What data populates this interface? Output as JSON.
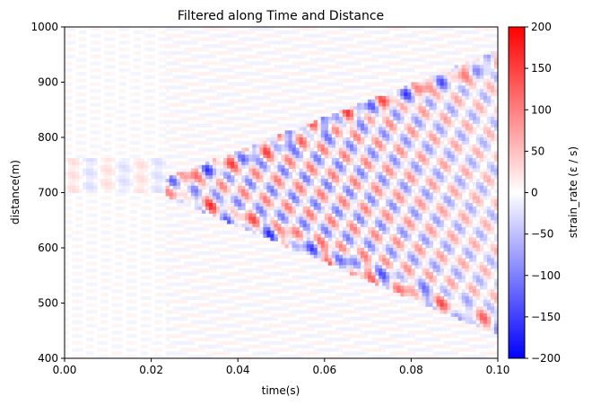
{
  "chart_data": {
    "type": "heatmap",
    "title": "Filtered along Time and Distance",
    "xlabel": "time(s)",
    "ylabel": "distance(m)",
    "xlim": [
      0.0,
      0.1
    ],
    "ylim": [
      400,
      1000
    ],
    "x_ticks": [
      "0.00",
      "0.02",
      "0.04",
      "0.06",
      "0.08",
      "0.10"
    ],
    "y_ticks": [
      "400",
      "500",
      "600",
      "700",
      "800",
      "900",
      "1000"
    ],
    "colorbar": {
      "label": "strain_rate (ε / s)",
      "range": [
        -200,
        200
      ],
      "ticks": [
        "−200",
        "−150",
        "−100",
        "−50",
        "0",
        "50",
        "100",
        "150",
        "200"
      ],
      "colormap": "bwr",
      "colors": {
        "low": "#0000ff",
        "mid": "#ffffff",
        "high": "#ff0000"
      }
    },
    "features": [
      {
        "name": "wavefront apex",
        "time": 0.027,
        "distance": 710
      },
      {
        "name": "upper wavefront edge",
        "time_range": [
          0.027,
          0.1
        ],
        "distance_range": [
          710,
          930
        ]
      },
      {
        "name": "lower wavefront edge",
        "time_range": [
          0.027,
          0.1
        ],
        "distance_range": [
          710,
          470
        ]
      }
    ],
    "grid": false
  }
}
